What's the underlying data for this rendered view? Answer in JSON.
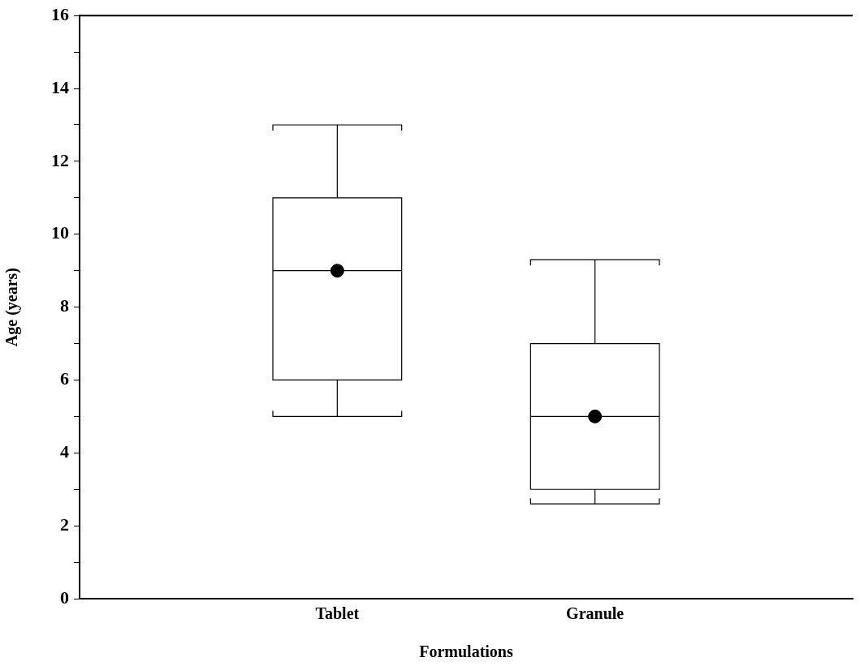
{
  "chart_data": {
    "type": "box",
    "xlabel": "Formulations",
    "ylabel": "Age (years)",
    "categories": [
      "Tablet",
      "Granule"
    ],
    "boxes": [
      {
        "low": 5,
        "q1": 6,
        "median": 9,
        "q3": 11,
        "high": 13,
        "mean": 9
      },
      {
        "low": 2.6,
        "q1": 3,
        "median": 5,
        "q3": 7,
        "high": 9.3,
        "mean": 5
      }
    ],
    "color": "#000000",
    "marker": "circle",
    "ylim": [
      0,
      16
    ],
    "yticks": [
      0,
      {
        "value": 1,
        "label": null
      },
      2,
      {
        "value": 3,
        "label": null
      },
      4,
      {
        "value": 5,
        "label": null
      },
      6,
      {
        "value": 7,
        "label": null
      },
      8,
      {
        "value": 9,
        "label": null
      },
      10,
      {
        "value": 11,
        "label": null
      },
      12,
      {
        "value": 13,
        "label": null
      },
      14,
      {
        "value": 15,
        "label": null
      },
      16
    ],
    "grid": false,
    "legend": false
  }
}
